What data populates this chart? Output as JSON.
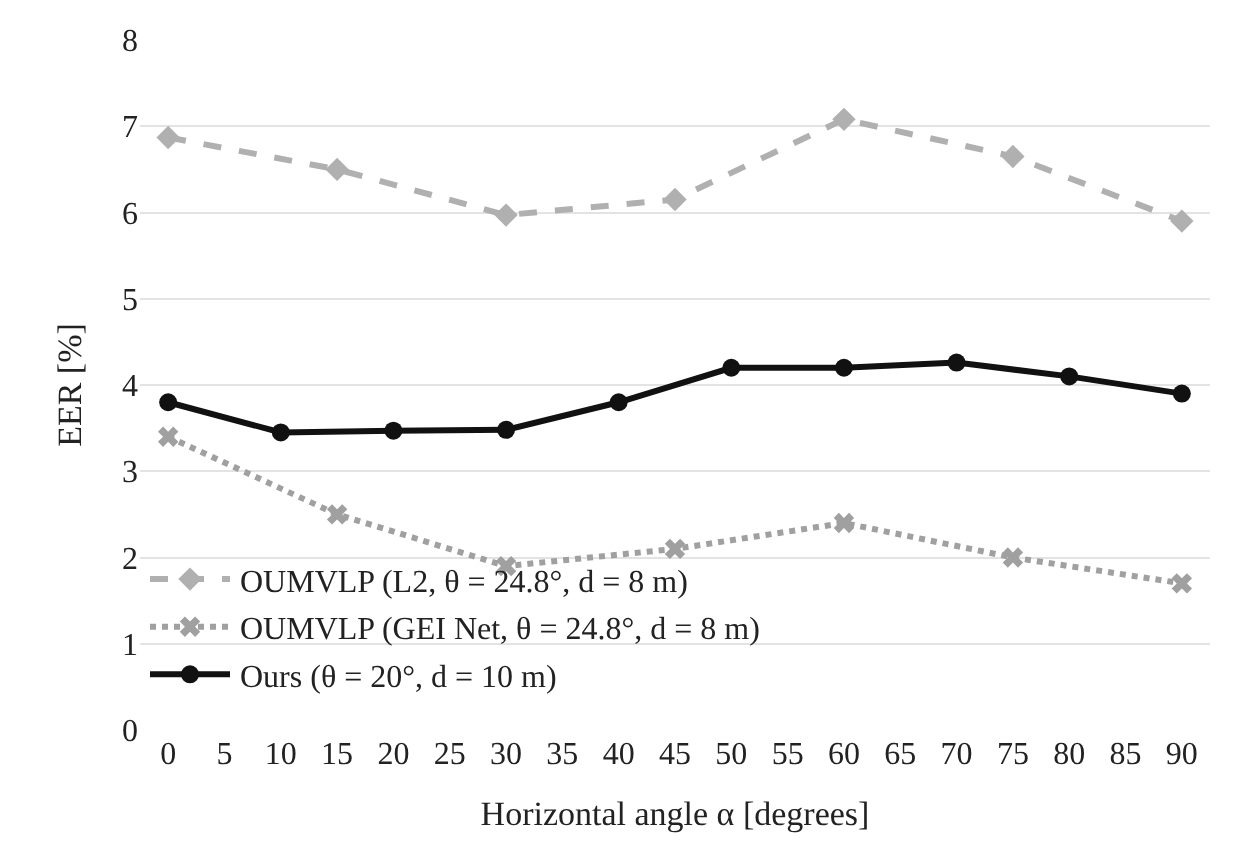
{
  "chart_data": {
    "type": "line",
    "xlabel": "Horizontal angle α [degrees]",
    "ylabel": "EER [%]",
    "xlim": [
      -2.5,
      92.5
    ],
    "xticks": [
      0,
      5,
      10,
      15,
      20,
      25,
      30,
      35,
      40,
      45,
      50,
      55,
      60,
      65,
      70,
      75,
      80,
      85,
      90
    ],
    "ylim": [
      0,
      8
    ],
    "yticks": [
      0,
      1,
      2,
      3,
      4,
      5,
      6,
      7,
      8
    ],
    "grid": "y",
    "legend": "bottom left",
    "series": [
      {
        "name": "OUMVLP (L2, θ = 24.8°, d = 8 m)",
        "color": "#b0b0b0",
        "line_style": "dashed",
        "marker": "diamond",
        "x": [
          0,
          15,
          30,
          45,
          60,
          75,
          90
        ],
        "values": [
          6.87,
          6.5,
          5.97,
          6.15,
          7.08,
          6.65,
          5.9
        ]
      },
      {
        "name": "OUMVLP (GEI Net, θ = 24.8°, d = 8 m)",
        "color": "#a0a0a0",
        "line_style": "dotted",
        "marker": "cross",
        "x": [
          0,
          15,
          30,
          45,
          60,
          75,
          90
        ],
        "values": [
          3.4,
          2.5,
          1.9,
          2.1,
          2.4,
          2.0,
          1.7
        ]
      },
      {
        "name": "Ours (θ = 20°, d = 10 m)",
        "color": "#111111",
        "line_style": "solid",
        "marker": "circle",
        "x": [
          0,
          10,
          20,
          30,
          40,
          50,
          60,
          70,
          80,
          90
        ],
        "values": [
          3.8,
          3.45,
          3.47,
          3.48,
          3.8,
          4.2,
          4.2,
          4.26,
          4.1,
          3.9
        ]
      }
    ]
  }
}
